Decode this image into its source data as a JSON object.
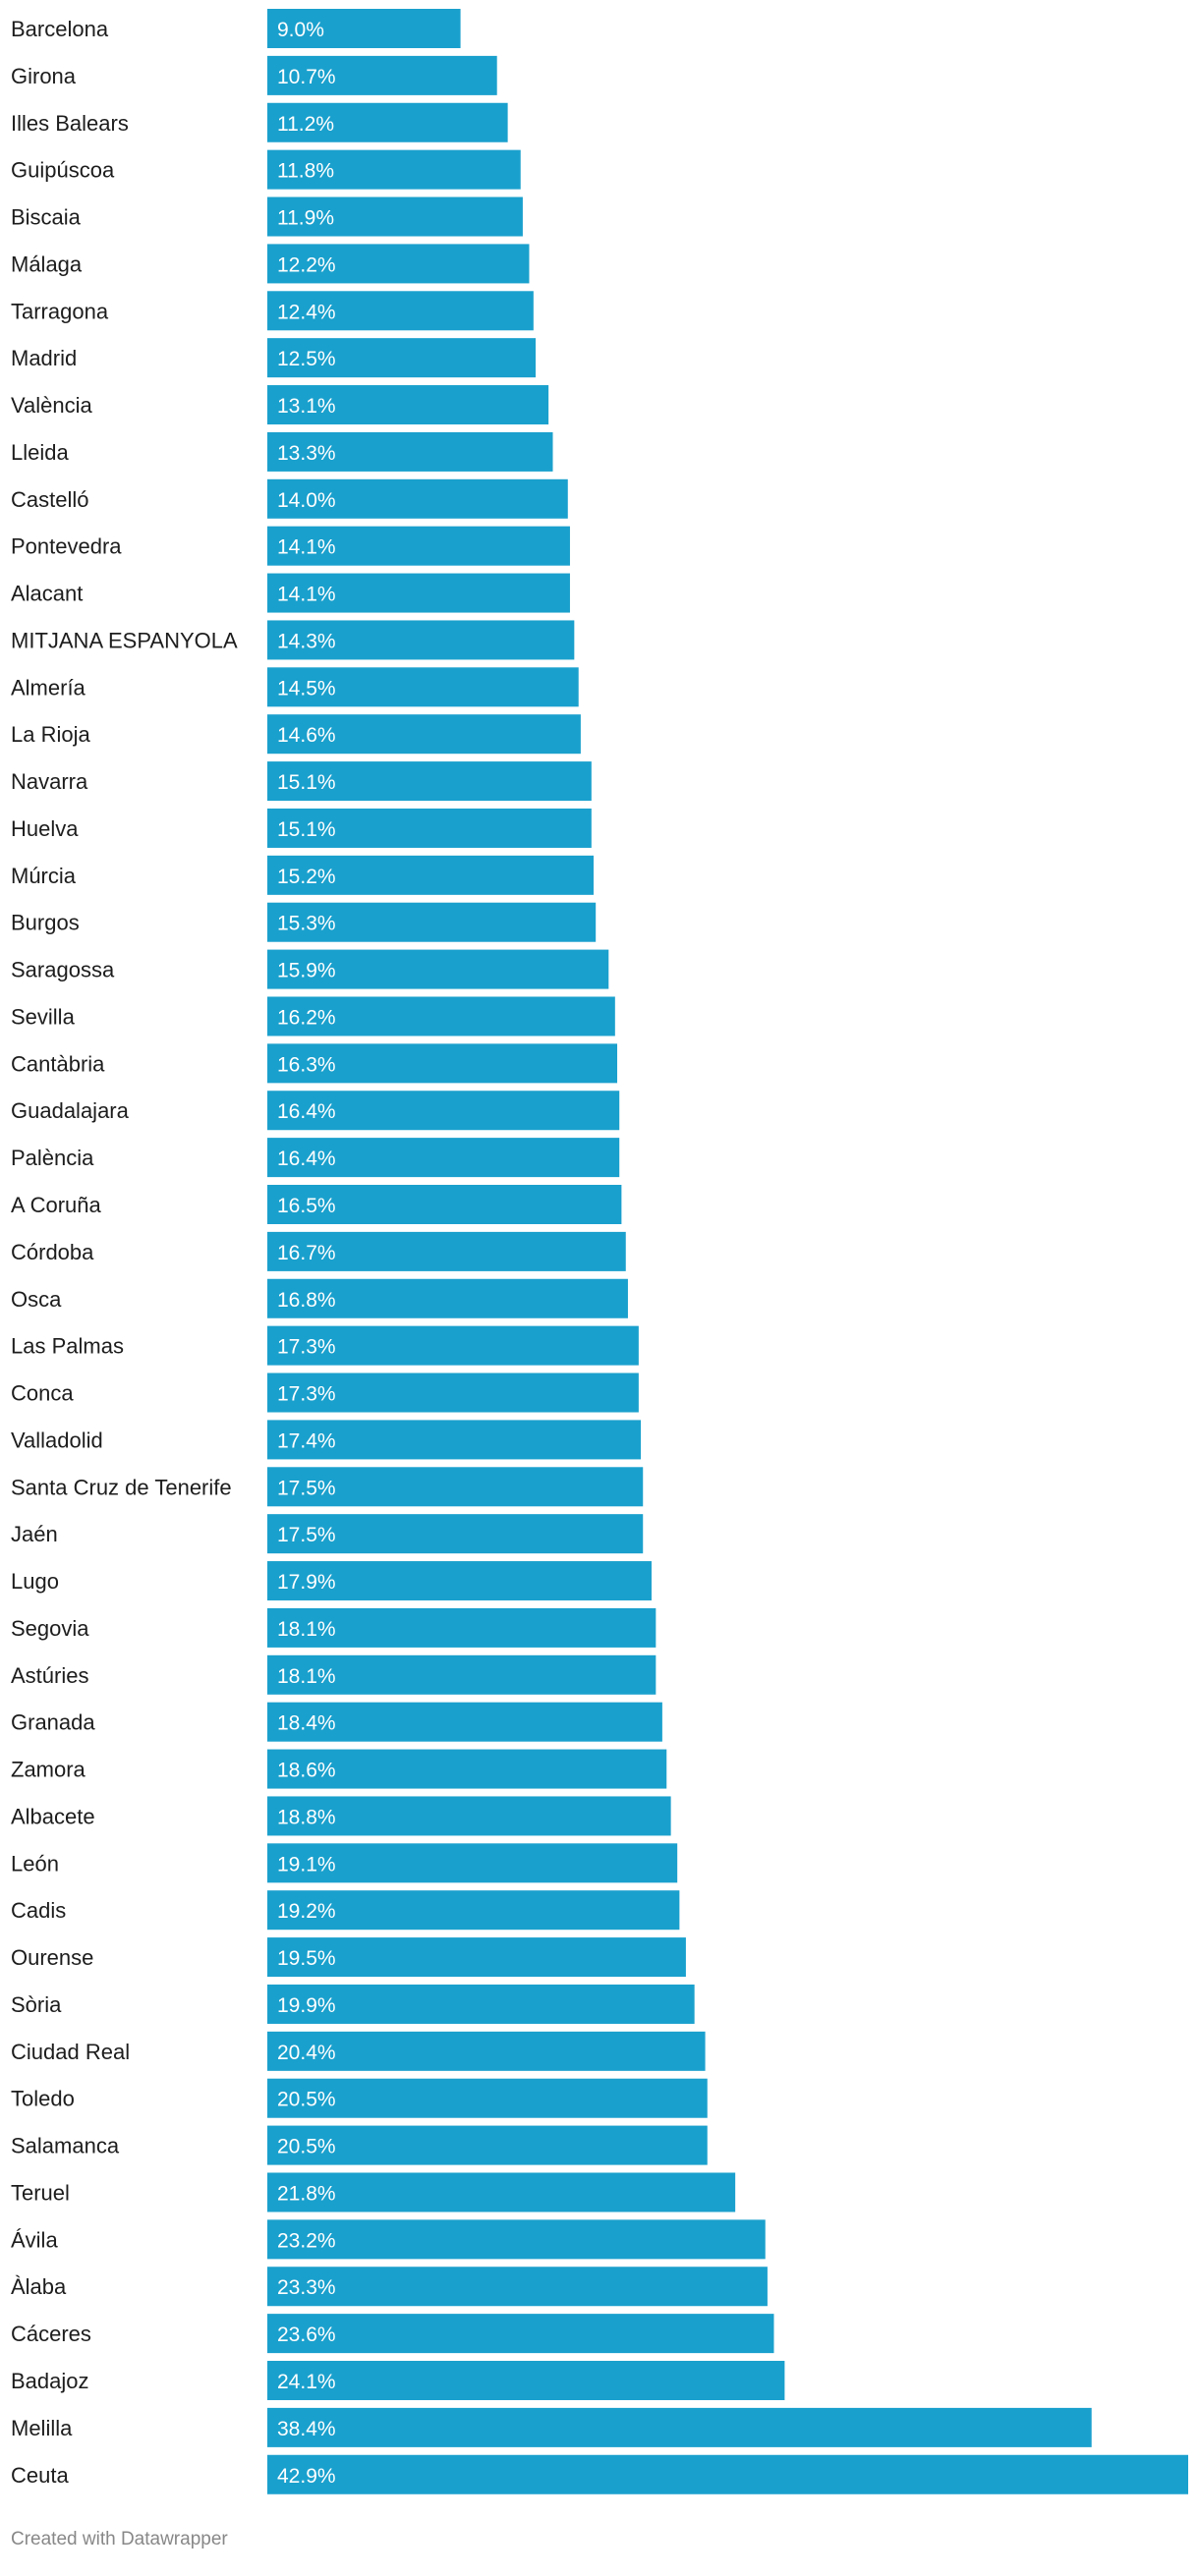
{
  "chart_data": {
    "type": "bar",
    "orientation": "horizontal",
    "value_suffix": "%",
    "bar_color": "#1aa0cd",
    "categories": [
      "Barcelona",
      "Girona",
      "Illes Balears",
      "Guipúscoa",
      "Biscaia",
      "Málaga",
      "Tarragona",
      "Madrid",
      "València",
      "Lleida",
      "Castelló",
      "Pontevedra",
      "Alacant",
      "MITJANA ESPANYOLA",
      "Almería",
      "La Rioja",
      "Navarra",
      "Huelva",
      "Múrcia",
      "Burgos",
      "Saragossa",
      "Sevilla",
      "Cantàbria",
      "Guadalajara",
      "Palència",
      "A Coruña",
      "Córdoba",
      "Osca",
      "Las Palmas",
      "Conca",
      "Valladolid",
      "Santa Cruz de Tenerife",
      "Jaén",
      "Lugo",
      "Segovia",
      "Astúries",
      "Granada",
      "Zamora",
      "Albacete",
      "León",
      "Cadis",
      "Ourense",
      "Sòria",
      "Ciudad Real",
      "Toledo",
      "Salamanca",
      "Teruel",
      "Ávila",
      "Àlaba",
      "Cáceres",
      "Badajoz",
      "Melilla",
      "Ceuta"
    ],
    "values": [
      9.0,
      10.7,
      11.2,
      11.8,
      11.9,
      12.2,
      12.4,
      12.5,
      13.1,
      13.3,
      14.0,
      14.1,
      14.1,
      14.3,
      14.5,
      14.6,
      15.1,
      15.1,
      15.2,
      15.3,
      15.9,
      16.2,
      16.3,
      16.4,
      16.4,
      16.5,
      16.7,
      16.8,
      17.3,
      17.3,
      17.4,
      17.5,
      17.5,
      17.9,
      18.1,
      18.1,
      18.4,
      18.6,
      18.8,
      19.1,
      19.2,
      19.5,
      19.9,
      20.4,
      20.5,
      20.5,
      21.8,
      23.2,
      23.3,
      23.6,
      24.1,
      38.4,
      42.9
    ],
    "xlim": [
      0,
      42.9
    ],
    "title": "",
    "xlabel": "",
    "ylabel": ""
  },
  "footer": {
    "credit": "Created with Datawrapper"
  }
}
